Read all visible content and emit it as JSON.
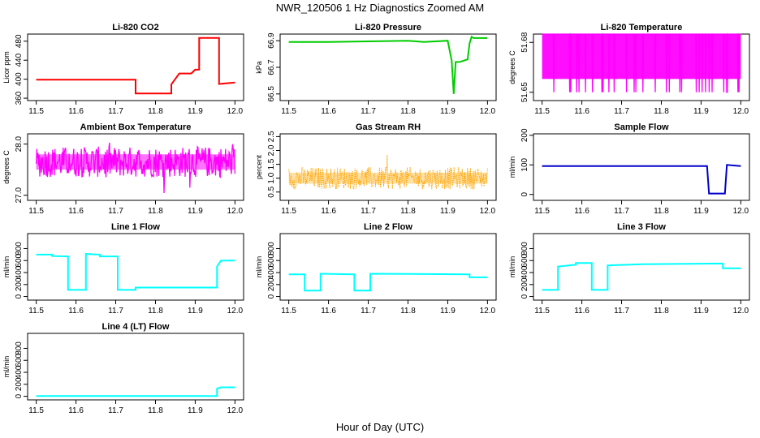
{
  "page": {
    "title": "NWR_120506  1 Hz Diagnostics Zoomed AM",
    "xlabel": "Hour of Day (UTC)"
  },
  "chart_data": [
    {
      "type": "line",
      "title": "Li-820 CO2",
      "ylabel": "Licor ppm",
      "color": "#ff0000",
      "xlim": [
        11.5,
        12.0
      ],
      "xticks": [
        11.5,
        11.6,
        11.7,
        11.8,
        11.9,
        12.0
      ],
      "xtick_labels": [
        "11.5",
        "11.6",
        "11.7",
        "11.8",
        "11.9",
        "12.0"
      ],
      "ylim": [
        355,
        495
      ],
      "yticks": [
        360,
        400,
        440,
        480
      ],
      "ytick_labels": [
        "360",
        "400",
        "440",
        "480"
      ],
      "series": [
        {
          "x": [
            11.5,
            11.65,
            11.75,
            11.75,
            11.84,
            11.84,
            11.84,
            11.86,
            11.89,
            11.9,
            11.9,
            11.91,
            11.91,
            11.96,
            11.96,
            12.0
          ],
          "y": [
            399,
            399,
            399,
            370,
            370,
            382,
            389,
            412,
            412,
            420,
            420,
            420,
            487,
            487,
            390,
            393
          ]
        }
      ],
      "grid": false
    },
    {
      "type": "line",
      "title": "Li-820 Pressure",
      "ylabel": "kPa",
      "color": "#00cc00",
      "xlim": [
        11.5,
        12.0
      ],
      "xticks": [
        11.5,
        11.6,
        11.7,
        11.8,
        11.9,
        12.0
      ],
      "xtick_labels": [
        "11.5",
        "11.6",
        "11.7",
        "11.8",
        "11.9",
        "12.0"
      ],
      "ylim": [
        66.45,
        66.95
      ],
      "yticks": [
        66.5,
        66.7,
        66.9
      ],
      "ytick_labels": [
        "66.5",
        "66.7",
        "66.9"
      ],
      "series": [
        {
          "x": [
            11.5,
            11.6,
            11.8,
            11.84,
            11.9,
            11.91,
            11.915,
            11.92,
            11.93,
            11.95,
            11.955,
            11.96,
            11.965,
            12.0
          ],
          "y": [
            66.89,
            66.89,
            66.9,
            66.89,
            66.9,
            66.75,
            66.5,
            66.74,
            66.74,
            66.76,
            66.88,
            66.93,
            66.92,
            66.92
          ]
        }
      ],
      "grid": false
    },
    {
      "type": "line",
      "title": "Li-820 Temperature",
      "ylabel": "degrees C",
      "color": "#ff00ff",
      "xlim": [
        11.5,
        12.0
      ],
      "xticks": [
        11.5,
        11.6,
        11.7,
        11.8,
        11.9,
        12.0
      ],
      "xtick_labels": [
        "11.5",
        "11.6",
        "11.7",
        "11.8",
        "11.9",
        "12.0"
      ],
      "ylim": [
        51.645,
        51.685
      ],
      "yticks": [
        51.65,
        51.68
      ],
      "ytick_labels": [
        "51.65",
        "51.68"
      ],
      "series": [
        {
          "x": [
            11.5,
            12.0
          ],
          "y": [
            51.667,
            51.667
          ],
          "band": [
            51.65,
            51.685
          ]
        }
      ],
      "grid": false
    },
    {
      "type": "line",
      "title": "Ambient Box Temperature",
      "ylabel": "degrees C",
      "color": "#ff00ff",
      "xlim": [
        11.5,
        12.0
      ],
      "xticks": [
        11.5,
        11.6,
        11.7,
        11.8,
        11.9,
        12.0
      ],
      "xtick_labels": [
        "11.5",
        "11.6",
        "11.7",
        "11.8",
        "11.9",
        "12.0"
      ],
      "ylim": [
        26.9,
        28.2
      ],
      "yticks": [
        27.0,
        28.0
      ],
      "ytick_labels": [
        "27.0",
        "28.0"
      ],
      "series": [
        {
          "x": [
            11.5,
            12.0
          ],
          "y": [
            27.65,
            27.65
          ],
          "band": [
            27.35,
            27.95
          ]
        }
      ],
      "grid": false
    },
    {
      "type": "scatter",
      "title": "Gas Stream RH",
      "ylabel": "percent",
      "color": "#ffa500",
      "xlim": [
        11.5,
        12.0
      ],
      "xticks": [
        11.5,
        11.6,
        11.7,
        11.8,
        11.9,
        12.0
      ],
      "xtick_labels": [
        "11.5",
        "11.6",
        "11.7",
        "11.8",
        "11.9",
        "12.0"
      ],
      "ylim": [
        0.2,
        2.6
      ],
      "yticks": [
        0.5,
        1.0,
        1.5,
        2.0,
        2.5
      ],
      "ytick_labels": [
        "0.5",
        "1.0",
        "1.5",
        "2.0",
        "2.5"
      ],
      "series": [
        {
          "x": [
            11.5,
            12.0
          ],
          "y": [
            1.0,
            1.0
          ],
          "band": [
            0.6,
            1.4
          ]
        }
      ],
      "grid": false
    },
    {
      "type": "line",
      "title": "Sample Flow",
      "ylabel": "ml/min",
      "color": "#0000cc",
      "xlim": [
        11.5,
        12.0
      ],
      "xticks": [
        11.5,
        11.6,
        11.7,
        11.8,
        11.9,
        12.0
      ],
      "xtick_labels": [
        "11.5",
        "11.6",
        "11.7",
        "11.8",
        "11.9",
        "12.0"
      ],
      "ylim": [
        -20,
        205
      ],
      "yticks": [
        0,
        100,
        200
      ],
      "ytick_labels": [
        "0",
        "100",
        "200"
      ],
      "series": [
        {
          "x": [
            11.5,
            11.915,
            11.92,
            11.96,
            11.965,
            12.0
          ],
          "y": [
            96,
            96,
            3,
            3,
            100,
            96
          ]
        }
      ],
      "grid": false
    },
    {
      "type": "line",
      "title": "Line 1 Flow",
      "ylabel": "ml/min",
      "color": "#00ffff",
      "xlim": [
        11.5,
        12.0
      ],
      "xticks": [
        11.5,
        11.6,
        11.7,
        11.8,
        11.9,
        12.0
      ],
      "xtick_labels": [
        "11.5",
        "11.6",
        "11.7",
        "11.8",
        "11.9",
        "12.0"
      ],
      "ylim": [
        -60,
        1050
      ],
      "yticks": [
        0,
        200,
        400,
        600,
        800
      ],
      "ytick_labels": [
        "0",
        "200",
        "400",
        "600",
        "800"
      ],
      "series": [
        {
          "x": [
            11.5,
            11.54,
            11.54,
            11.58,
            11.58,
            11.625,
            11.625,
            11.66,
            11.66,
            11.705,
            11.705,
            11.75,
            11.75,
            11.955,
            11.955,
            11.965,
            12.0
          ],
          "y": [
            700,
            700,
            675,
            670,
            110,
            110,
            710,
            700,
            670,
            670,
            110,
            110,
            150,
            150,
            500,
            600,
            600
          ]
        }
      ],
      "grid": false
    },
    {
      "type": "line",
      "title": "Line 2 Flow",
      "ylabel": "ml/min",
      "color": "#00ffff",
      "xlim": [
        11.5,
        12.0
      ],
      "xticks": [
        11.5,
        11.6,
        11.7,
        11.8,
        11.9,
        12.0
      ],
      "xtick_labels": [
        "11.5",
        "11.6",
        "11.7",
        "11.8",
        "11.9",
        "12.0"
      ],
      "ylim": [
        -60,
        1050
      ],
      "yticks": [
        0,
        200,
        400,
        600,
        800
      ],
      "ytick_labels": [
        "0",
        "200",
        "400",
        "600",
        "800"
      ],
      "series": [
        {
          "x": [
            11.5,
            11.54,
            11.54,
            11.58,
            11.58,
            11.665,
            11.665,
            11.705,
            11.705,
            11.955,
            11.955,
            12.0
          ],
          "y": [
            370,
            370,
            100,
            100,
            380,
            370,
            100,
            100,
            380,
            370,
            320,
            320
          ]
        }
      ],
      "grid": false
    },
    {
      "type": "line",
      "title": "Line 3 Flow",
      "ylabel": "ml/min",
      "color": "#00ffff",
      "xlim": [
        11.5,
        12.0
      ],
      "xticks": [
        11.5,
        11.6,
        11.7,
        11.8,
        11.9,
        12.0
      ],
      "xtick_labels": [
        "11.5",
        "11.6",
        "11.7",
        "11.8",
        "11.9",
        "12.0"
      ],
      "ylim": [
        -60,
        1050
      ],
      "yticks": [
        0,
        200,
        400,
        600,
        800
      ],
      "ytick_labels": [
        "0",
        "200",
        "400",
        "600",
        "800"
      ],
      "series": [
        {
          "x": [
            11.5,
            11.54,
            11.54,
            11.585,
            11.585,
            11.625,
            11.625,
            11.665,
            11.665,
            11.75,
            11.955,
            11.955,
            12.0
          ],
          "y": [
            110,
            110,
            500,
            530,
            560,
            560,
            110,
            110,
            520,
            540,
            550,
            470,
            470
          ]
        }
      ],
      "grid": false
    },
    {
      "type": "line",
      "title": "Line 4 (LT) Flow",
      "ylabel": "ml/min",
      "color": "#00ffff",
      "xlim": [
        11.5,
        12.0
      ],
      "xticks": [
        11.5,
        11.6,
        11.7,
        11.8,
        11.9,
        12.0
      ],
      "xtick_labels": [
        "11.5",
        "11.6",
        "11.7",
        "11.8",
        "11.9",
        "12.0"
      ],
      "ylim": [
        -60,
        1050
      ],
      "yticks": [
        0,
        200,
        400,
        600,
        800
      ],
      "ytick_labels": [
        "0",
        "200",
        "400",
        "600",
        "800"
      ],
      "series": [
        {
          "x": [
            11.5,
            11.955,
            11.955,
            11.965,
            12.0
          ],
          "y": [
            5,
            5,
            130,
            150,
            150
          ]
        }
      ],
      "grid": false
    }
  ]
}
